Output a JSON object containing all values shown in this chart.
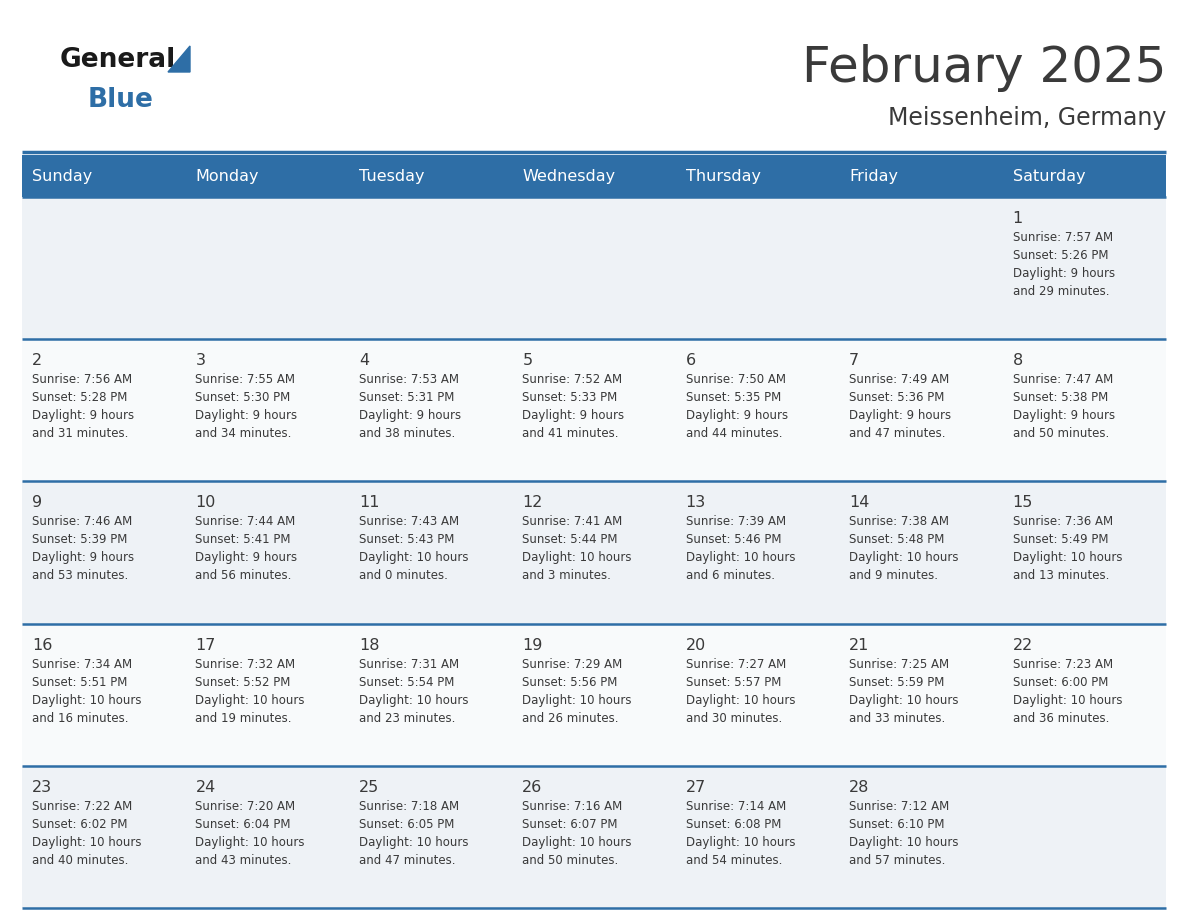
{
  "title": "February 2025",
  "subtitle": "Meissenheim, Germany",
  "header_color": "#2E6EA6",
  "header_text_color": "#FFFFFF",
  "bg_color": "#FFFFFF",
  "row_line_color": "#2E6EA6",
  "text_color": "#3a3a3a",
  "days_of_week": [
    "Sunday",
    "Monday",
    "Tuesday",
    "Wednesday",
    "Thursday",
    "Friday",
    "Saturday"
  ],
  "weeks": [
    [
      {
        "day": null,
        "info": null
      },
      {
        "day": null,
        "info": null
      },
      {
        "day": null,
        "info": null
      },
      {
        "day": null,
        "info": null
      },
      {
        "day": null,
        "info": null
      },
      {
        "day": null,
        "info": null
      },
      {
        "day": 1,
        "info": "Sunrise: 7:57 AM\nSunset: 5:26 PM\nDaylight: 9 hours\nand 29 minutes."
      }
    ],
    [
      {
        "day": 2,
        "info": "Sunrise: 7:56 AM\nSunset: 5:28 PM\nDaylight: 9 hours\nand 31 minutes."
      },
      {
        "day": 3,
        "info": "Sunrise: 7:55 AM\nSunset: 5:30 PM\nDaylight: 9 hours\nand 34 minutes."
      },
      {
        "day": 4,
        "info": "Sunrise: 7:53 AM\nSunset: 5:31 PM\nDaylight: 9 hours\nand 38 minutes."
      },
      {
        "day": 5,
        "info": "Sunrise: 7:52 AM\nSunset: 5:33 PM\nDaylight: 9 hours\nand 41 minutes."
      },
      {
        "day": 6,
        "info": "Sunrise: 7:50 AM\nSunset: 5:35 PM\nDaylight: 9 hours\nand 44 minutes."
      },
      {
        "day": 7,
        "info": "Sunrise: 7:49 AM\nSunset: 5:36 PM\nDaylight: 9 hours\nand 47 minutes."
      },
      {
        "day": 8,
        "info": "Sunrise: 7:47 AM\nSunset: 5:38 PM\nDaylight: 9 hours\nand 50 minutes."
      }
    ],
    [
      {
        "day": 9,
        "info": "Sunrise: 7:46 AM\nSunset: 5:39 PM\nDaylight: 9 hours\nand 53 minutes."
      },
      {
        "day": 10,
        "info": "Sunrise: 7:44 AM\nSunset: 5:41 PM\nDaylight: 9 hours\nand 56 minutes."
      },
      {
        "day": 11,
        "info": "Sunrise: 7:43 AM\nSunset: 5:43 PM\nDaylight: 10 hours\nand 0 minutes."
      },
      {
        "day": 12,
        "info": "Sunrise: 7:41 AM\nSunset: 5:44 PM\nDaylight: 10 hours\nand 3 minutes."
      },
      {
        "day": 13,
        "info": "Sunrise: 7:39 AM\nSunset: 5:46 PM\nDaylight: 10 hours\nand 6 minutes."
      },
      {
        "day": 14,
        "info": "Sunrise: 7:38 AM\nSunset: 5:48 PM\nDaylight: 10 hours\nand 9 minutes."
      },
      {
        "day": 15,
        "info": "Sunrise: 7:36 AM\nSunset: 5:49 PM\nDaylight: 10 hours\nand 13 minutes."
      }
    ],
    [
      {
        "day": 16,
        "info": "Sunrise: 7:34 AM\nSunset: 5:51 PM\nDaylight: 10 hours\nand 16 minutes."
      },
      {
        "day": 17,
        "info": "Sunrise: 7:32 AM\nSunset: 5:52 PM\nDaylight: 10 hours\nand 19 minutes."
      },
      {
        "day": 18,
        "info": "Sunrise: 7:31 AM\nSunset: 5:54 PM\nDaylight: 10 hours\nand 23 minutes."
      },
      {
        "day": 19,
        "info": "Sunrise: 7:29 AM\nSunset: 5:56 PM\nDaylight: 10 hours\nand 26 minutes."
      },
      {
        "day": 20,
        "info": "Sunrise: 7:27 AM\nSunset: 5:57 PM\nDaylight: 10 hours\nand 30 minutes."
      },
      {
        "day": 21,
        "info": "Sunrise: 7:25 AM\nSunset: 5:59 PM\nDaylight: 10 hours\nand 33 minutes."
      },
      {
        "day": 22,
        "info": "Sunrise: 7:23 AM\nSunset: 6:00 PM\nDaylight: 10 hours\nand 36 minutes."
      }
    ],
    [
      {
        "day": 23,
        "info": "Sunrise: 7:22 AM\nSunset: 6:02 PM\nDaylight: 10 hours\nand 40 minutes."
      },
      {
        "day": 24,
        "info": "Sunrise: 7:20 AM\nSunset: 6:04 PM\nDaylight: 10 hours\nand 43 minutes."
      },
      {
        "day": 25,
        "info": "Sunrise: 7:18 AM\nSunset: 6:05 PM\nDaylight: 10 hours\nand 47 minutes."
      },
      {
        "day": 26,
        "info": "Sunrise: 7:16 AM\nSunset: 6:07 PM\nDaylight: 10 hours\nand 50 minutes."
      },
      {
        "day": 27,
        "info": "Sunrise: 7:14 AM\nSunset: 6:08 PM\nDaylight: 10 hours\nand 54 minutes."
      },
      {
        "day": 28,
        "info": "Sunrise: 7:12 AM\nSunset: 6:10 PM\nDaylight: 10 hours\nand 57 minutes."
      },
      {
        "day": null,
        "info": null
      }
    ]
  ],
  "logo_color_general": "#1a1a1a",
  "logo_color_blue": "#2E6EA6",
  "logo_triangle_color": "#2E6EA6"
}
